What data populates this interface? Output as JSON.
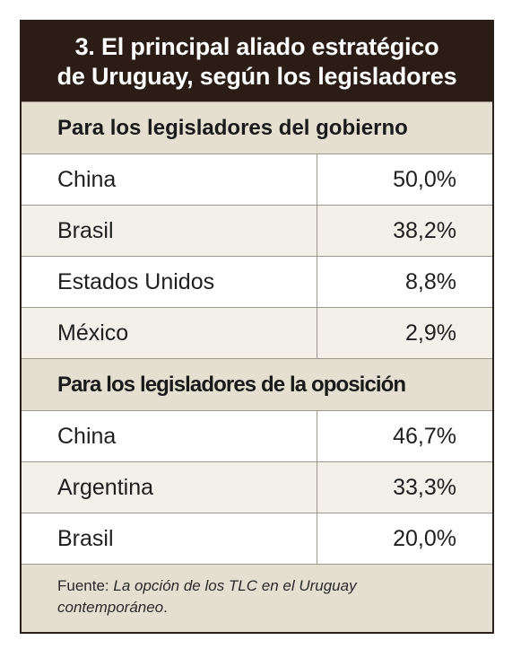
{
  "title": {
    "line1": "3. El principal aliado estratégico",
    "line2": "de Uruguay, según los legisladores"
  },
  "sections": [
    {
      "header": "Para los legisladores del gobierno",
      "rows": [
        {
          "label": "China",
          "value": "50,0%"
        },
        {
          "label": "Brasil",
          "value": "38,2%"
        },
        {
          "label": "Estados Unidos",
          "value": "8,8%"
        },
        {
          "label": "México",
          "value": "2,9%"
        }
      ]
    },
    {
      "header": "Para los legisladores de la oposición",
      "rows": [
        {
          "label": "China",
          "value": "46,7%"
        },
        {
          "label": "Argentina",
          "value": "33,3%"
        },
        {
          "label": "Brasil",
          "value": "20,0%"
        }
      ]
    }
  ],
  "footer": {
    "prefix": "Fuente: ",
    "source_italic": "La opción de los TLC  en el Uruguay contemporáneo",
    "suffix": "."
  },
  "colors": {
    "title_bg": "#2b1c15",
    "section_bg": "#e5dfd1",
    "border": "#9d978c"
  }
}
